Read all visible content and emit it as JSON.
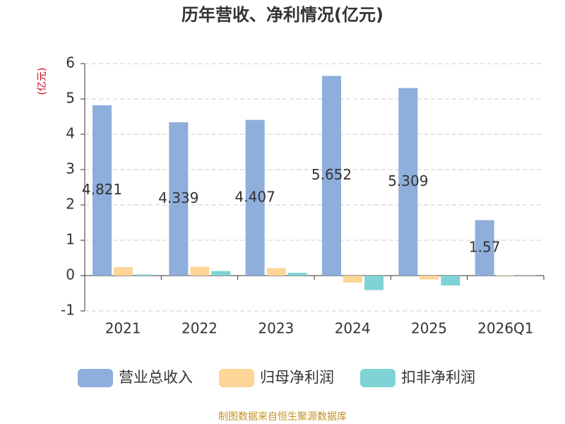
{
  "chart_data": {
    "type": "bar",
    "title": "历年营收、净利情况(亿元)",
    "y_label": "(亿元)",
    "source": "制图数据来自恒生聚源数据库",
    "categories": [
      "2021",
      "2022",
      "2023",
      "2024",
      "2025",
      "2026Q1"
    ],
    "series": [
      {
        "name": "营业总收入",
        "color": "#8eaedb",
        "values": [
          4.821,
          4.339,
          4.407,
          5.652,
          5.309,
          1.57
        ],
        "show_labels": true
      },
      {
        "name": "归母净利润",
        "color": "#fdd597",
        "values": [
          0.24,
          0.25,
          0.21,
          -0.2,
          -0.11,
          0.01
        ]
      },
      {
        "name": "扣非净利润",
        "color": "#7fd3d4",
        "values": [
          0.03,
          0.13,
          0.08,
          -0.41,
          -0.28,
          0.005
        ]
      }
    ],
    "ylim": [
      -1,
      6
    ],
    "yticks": [
      -1,
      0,
      1,
      2,
      3,
      4,
      5,
      6
    ],
    "grid": true
  }
}
